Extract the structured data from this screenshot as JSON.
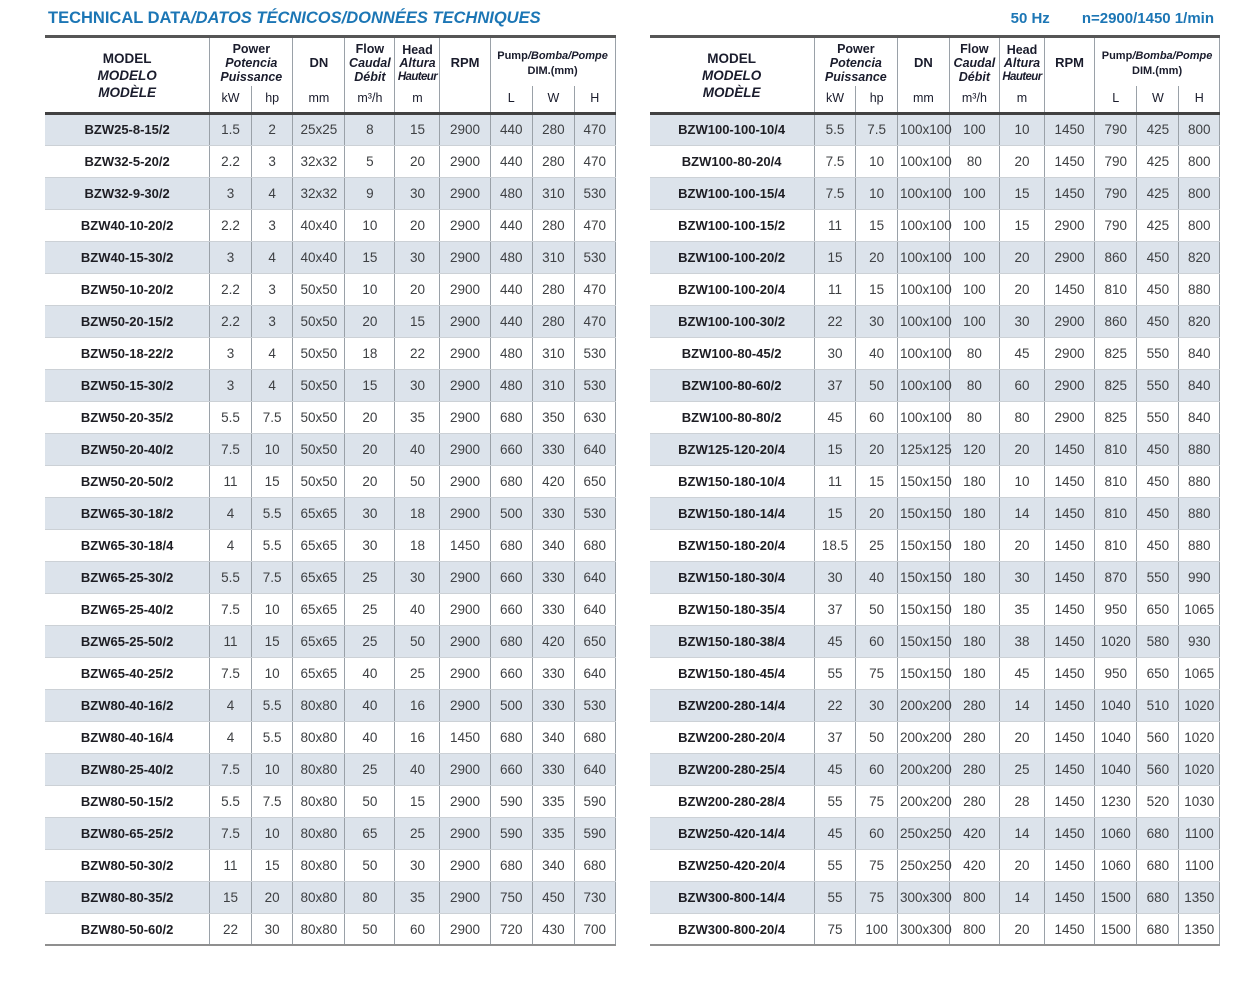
{
  "header_bar": {
    "title_en": "TECHNICAL DATA",
    "title_rest": "/DATOS TÉCNICOS/DONNÉES TECHNIQUES",
    "frequency": "50 Hz",
    "speed": "n=2900/1450 1/min"
  },
  "colors": {
    "accent_blue": "#1c76b5",
    "row_stripe": "#dce3eb"
  },
  "table_header": {
    "model_en": "MODEL",
    "model_es": "MODELO",
    "model_fr": "MODÈLE",
    "power_en": "Power",
    "power_es": "Potencia",
    "power_fr": "Puissance",
    "power_units": [
      "kW",
      "hp"
    ],
    "dn_label": "DN",
    "dn_unit": "mm",
    "flow_en": "Flow",
    "flow_es": "Caudal",
    "flow_fr": "Débit",
    "flow_unit": "m³/h",
    "head_en": "Head",
    "head_es": "Altura",
    "head_fr": "Hauteur",
    "head_unit": "m",
    "rpm_label": "RPM",
    "dim_title_en": "Pump",
    "dim_title_rest": "/Bomba/Pompe",
    "dim_sub": "DIM.(mm)",
    "dim_units": [
      "L",
      "W",
      "H"
    ]
  },
  "tables": {
    "left": {
      "rows": [
        [
          "BZW25-8-15/2",
          "1.5",
          "2",
          "25x25",
          "8",
          "15",
          "2900",
          "440",
          "280",
          "470"
        ],
        [
          "BZW32-5-20/2",
          "2.2",
          "3",
          "32x32",
          "5",
          "20",
          "2900",
          "440",
          "280",
          "470"
        ],
        [
          "BZW32-9-30/2",
          "3",
          "4",
          "32x32",
          "9",
          "30",
          "2900",
          "480",
          "310",
          "530"
        ],
        [
          "BZW40-10-20/2",
          "2.2",
          "3",
          "40x40",
          "10",
          "20",
          "2900",
          "440",
          "280",
          "470"
        ],
        [
          "BZW40-15-30/2",
          "3",
          "4",
          "40x40",
          "15",
          "30",
          "2900",
          "480",
          "310",
          "530"
        ],
        [
          "BZW50-10-20/2",
          "2.2",
          "3",
          "50x50",
          "10",
          "20",
          "2900",
          "440",
          "280",
          "470"
        ],
        [
          "BZW50-20-15/2",
          "2.2",
          "3",
          "50x50",
          "20",
          "15",
          "2900",
          "440",
          "280",
          "470"
        ],
        [
          "BZW50-18-22/2",
          "3",
          "4",
          "50x50",
          "18",
          "22",
          "2900",
          "480",
          "310",
          "530"
        ],
        [
          "BZW50-15-30/2",
          "3",
          "4",
          "50x50",
          "15",
          "30",
          "2900",
          "480",
          "310",
          "530"
        ],
        [
          "BZW50-20-35/2",
          "5.5",
          "7.5",
          "50x50",
          "20",
          "35",
          "2900",
          "680",
          "350",
          "630"
        ],
        [
          "BZW50-20-40/2",
          "7.5",
          "10",
          "50x50",
          "20",
          "40",
          "2900",
          "660",
          "330",
          "640"
        ],
        [
          "BZW50-20-50/2",
          "11",
          "15",
          "50x50",
          "20",
          "50",
          "2900",
          "680",
          "420",
          "650"
        ],
        [
          "BZW65-30-18/2",
          "4",
          "5.5",
          "65x65",
          "30",
          "18",
          "2900",
          "500",
          "330",
          "530"
        ],
        [
          "BZW65-30-18/4",
          "4",
          "5.5",
          "65x65",
          "30",
          "18",
          "1450",
          "680",
          "340",
          "680"
        ],
        [
          "BZW65-25-30/2",
          "5.5",
          "7.5",
          "65x65",
          "25",
          "30",
          "2900",
          "660",
          "330",
          "640"
        ],
        [
          "BZW65-25-40/2",
          "7.5",
          "10",
          "65x65",
          "25",
          "40",
          "2900",
          "660",
          "330",
          "640"
        ],
        [
          "BZW65-25-50/2",
          "11",
          "15",
          "65x65",
          "25",
          "50",
          "2900",
          "680",
          "420",
          "650"
        ],
        [
          "BZW65-40-25/2",
          "7.5",
          "10",
          "65x65",
          "40",
          "25",
          "2900",
          "660",
          "330",
          "640"
        ],
        [
          "BZW80-40-16/2",
          "4",
          "5.5",
          "80x80",
          "40",
          "16",
          "2900",
          "500",
          "330",
          "530"
        ],
        [
          "BZW80-40-16/4",
          "4",
          "5.5",
          "80x80",
          "40",
          "16",
          "1450",
          "680",
          "340",
          "680"
        ],
        [
          "BZW80-25-40/2",
          "7.5",
          "10",
          "80x80",
          "25",
          "40",
          "2900",
          "660",
          "330",
          "640"
        ],
        [
          "BZW80-50-15/2",
          "5.5",
          "7.5",
          "80x80",
          "50",
          "15",
          "2900",
          "590",
          "335",
          "590"
        ],
        [
          "BZW80-65-25/2",
          "7.5",
          "10",
          "80x80",
          "65",
          "25",
          "2900",
          "590",
          "335",
          "590"
        ],
        [
          "BZW80-50-30/2",
          "11",
          "15",
          "80x80",
          "50",
          "30",
          "2900",
          "680",
          "340",
          "680"
        ],
        [
          "BZW80-80-35/2",
          "15",
          "20",
          "80x80",
          "80",
          "35",
          "2900",
          "750",
          "450",
          "730"
        ],
        [
          "BZW80-50-60/2",
          "22",
          "30",
          "80x80",
          "50",
          "60",
          "2900",
          "720",
          "430",
          "700"
        ]
      ]
    },
    "right": {
      "rows": [
        [
          "BZW100-100-10/4",
          "5.5",
          "7.5",
          "100x100",
          "100",
          "10",
          "1450",
          "790",
          "425",
          "800"
        ],
        [
          "BZW100-80-20/4",
          "7.5",
          "10",
          "100x100",
          "80",
          "20",
          "1450",
          "790",
          "425",
          "800"
        ],
        [
          "BZW100-100-15/4",
          "7.5",
          "10",
          "100x100",
          "100",
          "15",
          "1450",
          "790",
          "425",
          "800"
        ],
        [
          "BZW100-100-15/2",
          "11",
          "15",
          "100x100",
          "100",
          "15",
          "2900",
          "790",
          "425",
          "800"
        ],
        [
          "BZW100-100-20/2",
          "15",
          "20",
          "100x100",
          "100",
          "20",
          "2900",
          "860",
          "450",
          "820"
        ],
        [
          "BZW100-100-20/4",
          "11",
          "15",
          "100x100",
          "100",
          "20",
          "1450",
          "810",
          "450",
          "880"
        ],
        [
          "BZW100-100-30/2",
          "22",
          "30",
          "100x100",
          "100",
          "30",
          "2900",
          "860",
          "450",
          "820"
        ],
        [
          "BZW100-80-45/2",
          "30",
          "40",
          "100x100",
          "80",
          "45",
          "2900",
          "825",
          "550",
          "840"
        ],
        [
          "BZW100-80-60/2",
          "37",
          "50",
          "100x100",
          "80",
          "60",
          "2900",
          "825",
          "550",
          "840"
        ],
        [
          "BZW100-80-80/2",
          "45",
          "60",
          "100x100",
          "80",
          "80",
          "2900",
          "825",
          "550",
          "840"
        ],
        [
          "BZW125-120-20/4",
          "15",
          "20",
          "125x125",
          "120",
          "20",
          "1450",
          "810",
          "450",
          "880"
        ],
        [
          "BZW150-180-10/4",
          "11",
          "15",
          "150x150",
          "180",
          "10",
          "1450",
          "810",
          "450",
          "880"
        ],
        [
          "BZW150-180-14/4",
          "15",
          "20",
          "150x150",
          "180",
          "14",
          "1450",
          "810",
          "450",
          "880"
        ],
        [
          "BZW150-180-20/4",
          "18.5",
          "25",
          "150x150",
          "180",
          "20",
          "1450",
          "810",
          "450",
          "880"
        ],
        [
          "BZW150-180-30/4",
          "30",
          "40",
          "150x150",
          "180",
          "30",
          "1450",
          "870",
          "550",
          "990"
        ],
        [
          "BZW150-180-35/4",
          "37",
          "50",
          "150x150",
          "180",
          "35",
          "1450",
          "950",
          "650",
          "1065"
        ],
        [
          "BZW150-180-38/4",
          "45",
          "60",
          "150x150",
          "180",
          "38",
          "1450",
          "1020",
          "580",
          "930"
        ],
        [
          "BZW150-180-45/4",
          "55",
          "75",
          "150x150",
          "180",
          "45",
          "1450",
          "950",
          "650",
          "1065"
        ],
        [
          "BZW200-280-14/4",
          "22",
          "30",
          "200x200",
          "280",
          "14",
          "1450",
          "1040",
          "510",
          "1020"
        ],
        [
          "BZW200-280-20/4",
          "37",
          "50",
          "200x200",
          "280",
          "20",
          "1450",
          "1040",
          "560",
          "1020"
        ],
        [
          "BZW200-280-25/4",
          "45",
          "60",
          "200x200",
          "280",
          "25",
          "1450",
          "1040",
          "560",
          "1020"
        ],
        [
          "BZW200-280-28/4",
          "55",
          "75",
          "200x200",
          "280",
          "28",
          "1450",
          "1230",
          "520",
          "1030"
        ],
        [
          "BZW250-420-14/4",
          "45",
          "60",
          "250x250",
          "420",
          "14",
          "1450",
          "1060",
          "680",
          "1100"
        ],
        [
          "BZW250-420-20/4",
          "55",
          "75",
          "250x250",
          "420",
          "20",
          "1450",
          "1060",
          "680",
          "1100"
        ],
        [
          "BZW300-800-14/4",
          "55",
          "75",
          "300x300",
          "800",
          "14",
          "1450",
          "1500",
          "680",
          "1350"
        ],
        [
          "BZW300-800-20/4",
          "75",
          "100",
          "300x300",
          "800",
          "20",
          "1450",
          "1500",
          "680",
          "1350"
        ]
      ]
    }
  }
}
